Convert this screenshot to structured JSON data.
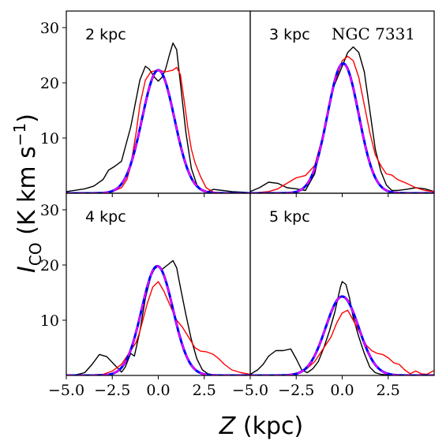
{
  "chart_data": {
    "type": "line",
    "grid": "off",
    "xlabel": {
      "italic": "Z",
      "rest": " (kpc)"
    },
    "ylabel": {
      "italic": "I",
      "sub": "CO",
      "rest": " (K km s",
      "sup": "−1",
      "close": ")"
    },
    "xlim": [
      -5.0,
      5.0
    ],
    "ylim": [
      0,
      33
    ],
    "x_ticks": [
      -5.0,
      -2.5,
      0.0,
      2.5
    ],
    "x_tick_labels": [
      "−5.0",
      "−2.5",
      "0.0",
      "2.5"
    ],
    "y_ticks": [
      10,
      20,
      30
    ],
    "y_tick_labels": [
      "10",
      "20",
      "30"
    ],
    "annotation": "NGC 7331",
    "colors": {
      "black": "#000000",
      "red": "#ff0000",
      "blue": "#0000ff",
      "magenta": "#ff00ff"
    },
    "panels": [
      {
        "label": "2 kpc",
        "series": [
          {
            "color": "black",
            "x": [
              -5,
              -4,
              -3.5,
              -3,
              -2.7,
              -2.4,
              -2,
              -1.5,
              -1,
              -0.7,
              -0.5,
              -0.2,
              0,
              0.2,
              0.4,
              0.6,
              0.8,
              1,
              1.2,
              1.5,
              1.8,
              2.1,
              2.4,
              2.7,
              3,
              3.5,
              4,
              4.5,
              5
            ],
            "y": [
              0.3,
              0.8,
              1.3,
              2.5,
              4.2,
              4.8,
              5.8,
              12,
              20.5,
              23,
              22.5,
              21,
              20.3,
              21,
              22.5,
              25,
              27.2,
              26,
              20,
              11,
              4.5,
              1.5,
              0.5,
              0.3,
              0.7,
              0.5,
              0.3,
              0.2,
              0.1
            ]
          },
          {
            "color": "red",
            "x": [
              -5,
              -4,
              -3,
              -2.5,
              -2,
              -1.7,
              -1.5,
              -1.2,
              -1,
              -0.7,
              -0.4,
              0,
              0.4,
              0.8,
              1,
              1.2,
              1.4,
              1.6,
              1.8,
              2,
              2.3,
              2.6,
              3,
              3.5,
              4,
              5
            ],
            "y": [
              0,
              0,
              0.1,
              0.3,
              1,
              2.5,
              5,
              11,
              16,
              20.5,
              22,
              22.3,
              22,
              22.3,
              22.8,
              21.5,
              17,
              12,
              8,
              5.5,
              3,
              1,
              0.2,
              0,
              0,
              0
            ]
          },
          {
            "color": "blue",
            "gauss": {
              "amp": 22.3,
              "mu": 0,
              "sigma": 0.88
            },
            "dashed": false
          },
          {
            "color": "magenta",
            "gauss": {
              "amp": 22.3,
              "mu": 0,
              "sigma": 0.88
            },
            "dashed": true
          }
        ]
      },
      {
        "label": "3 kpc",
        "series": [
          {
            "color": "black",
            "x": [
              -5,
              -4.5,
              -4,
              -3.5,
              -3,
              -2.5,
              -2,
              -1.5,
              -1,
              -0.5,
              0,
              0.3,
              0.6,
              0.9,
              1.2,
              1.5,
              1.8,
              2.1,
              2.4,
              2.7,
              3,
              3.5,
              4,
              4.5,
              5
            ],
            "y": [
              0.3,
              1,
              2,
              1.8,
              1,
              0.8,
              0.5,
              3.5,
              11,
              19,
              23,
              25.5,
              26.5,
              25.5,
              22,
              15,
              8,
              4,
              1.5,
              0.5,
              0.5,
              0.7,
              1,
              0.8,
              0.3
            ]
          },
          {
            "color": "red",
            "x": [
              -5,
              -4,
              -3.5,
              -3,
              -2.5,
              -2,
              -1.5,
              -1,
              -0.5,
              0,
              0.3,
              0.6,
              0.9,
              1.2,
              1.5,
              1.8,
              2.1,
              2.4,
              2.7,
              3,
              3.5,
              4,
              4.5,
              5
            ],
            "y": [
              0,
              0.3,
              0.8,
              1.8,
              2.8,
              3.2,
              5,
              11,
              19,
              24,
              24.8,
              24,
              21,
              16,
              11,
              7,
              5,
              3.5,
              3.3,
              2.5,
              1.8,
              1,
              0.5,
              0.3
            ]
          },
          {
            "color": "blue",
            "gauss": {
              "amp": 23.5,
              "mu": 0.05,
              "sigma": 0.85
            },
            "dashed": false
          },
          {
            "color": "magenta",
            "gauss": {
              "amp": 23.5,
              "mu": 0.05,
              "sigma": 0.85
            },
            "dashed": true
          }
        ]
      },
      {
        "label": "4 kpc",
        "series": [
          {
            "color": "black",
            "x": [
              -5,
              -4.5,
              -4,
              -3.6,
              -3.2,
              -2.8,
              -2.4,
              -2,
              -1.8,
              -1.5,
              -1.3,
              -1,
              -0.7,
              -0.4,
              -0.2,
              0,
              0.2,
              0.5,
              0.8,
              1,
              1.2,
              1.5,
              1.8,
              2.1,
              2.4,
              2.7,
              3,
              3.5,
              4,
              5
            ],
            "y": [
              0,
              0.1,
              0.5,
              2,
              3.8,
              3.4,
              2,
              0.6,
              1.5,
              4,
              3.5,
              8,
              14,
              18,
              19.3,
              19.8,
              19.2,
              20,
              20.8,
              19.5,
              16,
              11,
              6.5,
              3,
              1,
              0.3,
              0.1,
              0,
              0,
              0
            ]
          },
          {
            "color": "red",
            "x": [
              -5,
              -4,
              -3,
              -2.5,
              -2,
              -1.5,
              -1.2,
              -1,
              -0.6,
              -0.3,
              0,
              0.3,
              0.6,
              1,
              1.3,
              1.6,
              2,
              2.3,
              2.6,
              3,
              3.3,
              3.6,
              4,
              4.5,
              5
            ],
            "y": [
              0,
              0,
              0.2,
              0.8,
              2,
              4.5,
              6,
              8,
              13,
              16,
              17,
              15.3,
              13,
              10,
              8.8,
              7.2,
              5,
              4.4,
              4.3,
              3.8,
              3,
              2,
              1,
              0.5,
              0.2
            ]
          },
          {
            "color": "blue",
            "gauss": {
              "amp": 19.8,
              "mu": -0.05,
              "sigma": 0.85
            },
            "dashed": false
          },
          {
            "color": "magenta",
            "gauss": {
              "amp": 19.8,
              "mu": -0.05,
              "sigma": 0.85
            },
            "dashed": true
          }
        ]
      },
      {
        "label": "5 kpc",
        "series": [
          {
            "color": "black",
            "x": [
              -5,
              -4.6,
              -4.3,
              -4,
              -3.6,
              -3.2,
              -2.8,
              -2.5,
              -2.2,
              -1.9,
              -1.6,
              -1.3,
              -1,
              -0.7,
              -0.4,
              -0.1,
              0,
              0.2,
              0.4,
              0.6,
              0.9,
              1.2,
              1.5,
              1.8,
              2.1,
              2.4,
              2.7,
              3,
              3.5,
              4,
              5
            ],
            "y": [
              0.2,
              1,
              2,
              3.5,
              4.5,
              4.5,
              4.8,
              3,
              1,
              0.5,
              1.2,
              2.5,
              5,
              8,
              11.5,
              16,
              17,
              16.5,
              14,
              10.5,
              7,
              4,
              1.5,
              0.5,
              0.2,
              0.1,
              0,
              0,
              0,
              0,
              0
            ]
          },
          {
            "color": "red",
            "x": [
              -5,
              -4,
              -3,
              -2.5,
              -2,
              -1.5,
              -1,
              -0.6,
              -0.3,
              0,
              0.3,
              0.6,
              1,
              1.3,
              1.6,
              1.9,
              2.2,
              2.5,
              2.8,
              3.1,
              3.4,
              3.7,
              4,
              4.3,
              4.6,
              5
            ],
            "y": [
              0,
              0,
              0.1,
              0.4,
              1,
              2.5,
              5,
              7,
              9.5,
              11.3,
              11.8,
              10,
              7.5,
              5.5,
              4.5,
              4,
              3.8,
              3.2,
              2.3,
              2,
              1,
              0.3,
              0.8,
              0.3,
              0.2,
              0.9
            ]
          },
          {
            "color": "blue",
            "gauss": {
              "amp": 14.3,
              "mu": 0.0,
              "sigma": 0.9
            },
            "dashed": false
          },
          {
            "color": "magenta",
            "gauss": {
              "amp": 14.3,
              "mu": 0.0,
              "sigma": 0.9
            },
            "dashed": true
          }
        ]
      }
    ]
  }
}
